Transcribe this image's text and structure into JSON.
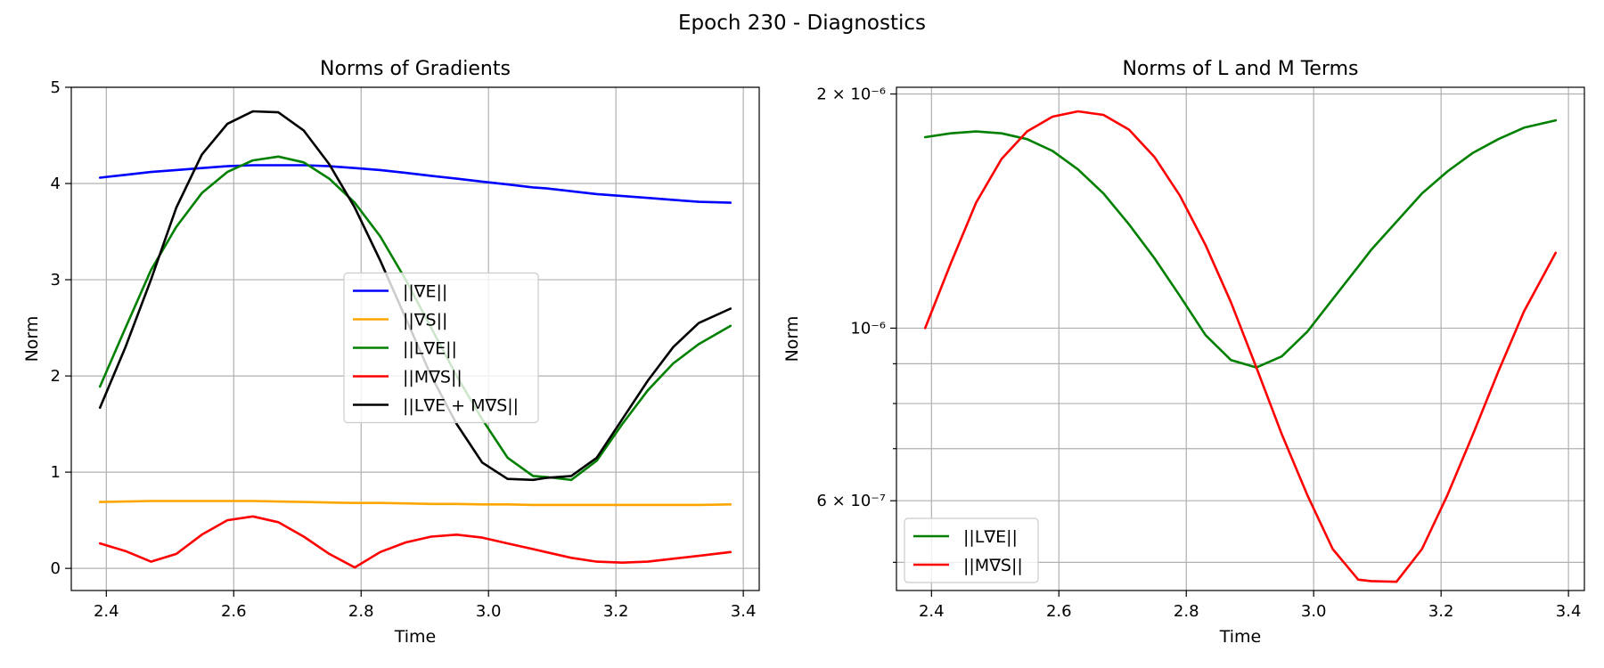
{
  "figure": {
    "suptitle": "Epoch 230 - Diagnostics"
  },
  "chart_data": [
    {
      "type": "line",
      "title": "Norms of Gradients",
      "xlabel": "Time",
      "ylabel": "Norm",
      "xlim": [
        2.345,
        3.425
      ],
      "ylim": [
        -0.23,
        5.0
      ],
      "xticks": [
        2.4,
        2.6,
        2.8,
        3.0,
        3.2,
        3.4
      ],
      "xtick_labels": [
        "2.4",
        "2.6",
        "2.8",
        "3.0",
        "3.2",
        "3.4"
      ],
      "yticks": [
        0,
        1,
        2,
        3,
        4,
        5
      ],
      "ytick_labels": [
        "0",
        "1",
        "2",
        "3",
        "4",
        "5"
      ],
      "grid": true,
      "legend": "center",
      "x": [
        2.39,
        2.43,
        2.47,
        2.51,
        2.55,
        2.59,
        2.63,
        2.67,
        2.71,
        2.75,
        2.79,
        2.83,
        2.87,
        2.91,
        2.95,
        2.99,
        3.03,
        3.07,
        3.09,
        3.13,
        3.17,
        3.21,
        3.25,
        3.29,
        3.33,
        3.38
      ],
      "series": [
        {
          "name": "||∇E||",
          "color": "#0000ff",
          "values": [
            4.06,
            4.09,
            4.12,
            4.14,
            4.16,
            4.18,
            4.19,
            4.19,
            4.19,
            4.18,
            4.16,
            4.14,
            4.11,
            4.08,
            4.05,
            4.02,
            3.99,
            3.96,
            3.95,
            3.92,
            3.89,
            3.87,
            3.85,
            3.83,
            3.81,
            3.8
          ]
        },
        {
          "name": "||∇S||",
          "color": "#ffa500",
          "values": [
            0.69,
            0.695,
            0.7,
            0.7,
            0.7,
            0.7,
            0.7,
            0.695,
            0.69,
            0.685,
            0.68,
            0.68,
            0.675,
            0.67,
            0.67,
            0.665,
            0.665,
            0.66,
            0.66,
            0.66,
            0.66,
            0.66,
            0.66,
            0.66,
            0.66,
            0.665
          ]
        },
        {
          "name": "||L∇E||",
          "color": "#008000",
          "values": [
            1.89,
            2.5,
            3.1,
            3.55,
            3.9,
            4.12,
            4.24,
            4.28,
            4.22,
            4.05,
            3.8,
            3.45,
            3.0,
            2.5,
            2.0,
            1.55,
            1.15,
            0.96,
            0.95,
            0.92,
            1.12,
            1.5,
            1.85,
            2.13,
            2.33,
            2.52
          ]
        },
        {
          "name": "||M∇S||",
          "color": "#ff0000",
          "values": [
            0.26,
            0.18,
            0.07,
            0.15,
            0.35,
            0.5,
            0.54,
            0.48,
            0.33,
            0.15,
            0.01,
            0.17,
            0.27,
            0.33,
            0.35,
            0.32,
            0.26,
            0.2,
            0.17,
            0.11,
            0.07,
            0.06,
            0.07,
            0.1,
            0.13,
            0.17
          ]
        },
        {
          "name": "||L∇E + M∇S||",
          "color": "#000000",
          "values": [
            1.67,
            2.3,
            3.0,
            3.75,
            4.3,
            4.62,
            4.75,
            4.74,
            4.55,
            4.2,
            3.75,
            3.2,
            2.6,
            2.0,
            1.5,
            1.1,
            0.93,
            0.92,
            0.94,
            0.96,
            1.15,
            1.55,
            1.95,
            2.3,
            2.55,
            2.7
          ]
        }
      ]
    },
    {
      "type": "line",
      "title": "Norms of L and M Terms",
      "xlabel": "Time",
      "ylabel": "Norm",
      "yscale": "log",
      "xlim": [
        2.345,
        3.425
      ],
      "ylim": [
        4.6e-07,
        2.04e-06
      ],
      "xticks": [
        2.4,
        2.6,
        2.8,
        3.0,
        3.2,
        3.4
      ],
      "xtick_labels": [
        "2.4",
        "2.6",
        "2.8",
        "3.0",
        "3.2",
        "3.4"
      ],
      "yticks_major": [
        6e-07,
        1e-06,
        2e-06
      ],
      "ytick_labels": [
        "6 × 10⁻⁷",
        "10⁻⁶",
        "2 × 10⁻⁶"
      ],
      "yticks_minor": [
        5e-07,
        7e-07,
        8e-07,
        9e-07
      ],
      "grid": true,
      "legend": "lower left",
      "x": [
        2.39,
        2.43,
        2.47,
        2.51,
        2.55,
        2.59,
        2.63,
        2.67,
        2.71,
        2.75,
        2.79,
        2.83,
        2.87,
        2.91,
        2.95,
        2.99,
        3.03,
        3.07,
        3.09,
        3.13,
        3.17,
        3.21,
        3.25,
        3.29,
        3.33,
        3.38
      ],
      "series": [
        {
          "name": "||L∇E||",
          "color": "#008000",
          "values": [
            1.76e-06,
            1.78e-06,
            1.79e-06,
            1.78e-06,
            1.75e-06,
            1.69e-06,
            1.6e-06,
            1.49e-06,
            1.36e-06,
            1.23e-06,
            1.1e-06,
            9.8e-07,
            9.1e-07,
            8.9e-07,
            9.2e-07,
            9.9e-07,
            1.09e-06,
            1.2e-06,
            1.26e-06,
            1.37e-06,
            1.49e-06,
            1.59e-06,
            1.68e-06,
            1.75e-06,
            1.81e-06,
            1.85e-06
          ]
        },
        {
          "name": "||M∇S||",
          "color": "#ff0000",
          "values": [
            1e-06,
            1.21e-06,
            1.45e-06,
            1.65e-06,
            1.79e-06,
            1.87e-06,
            1.9e-06,
            1.88e-06,
            1.8e-06,
            1.66e-06,
            1.48e-06,
            1.28e-06,
            1.08e-06,
            8.9e-07,
            7.3e-07,
            6.1e-07,
            5.2e-07,
            4.75e-07,
            4.73e-07,
            4.72e-07,
            5.2e-07,
            6.1e-07,
            7.3e-07,
            8.8e-07,
            1.05e-06,
            1.25e-06
          ]
        }
      ]
    }
  ]
}
